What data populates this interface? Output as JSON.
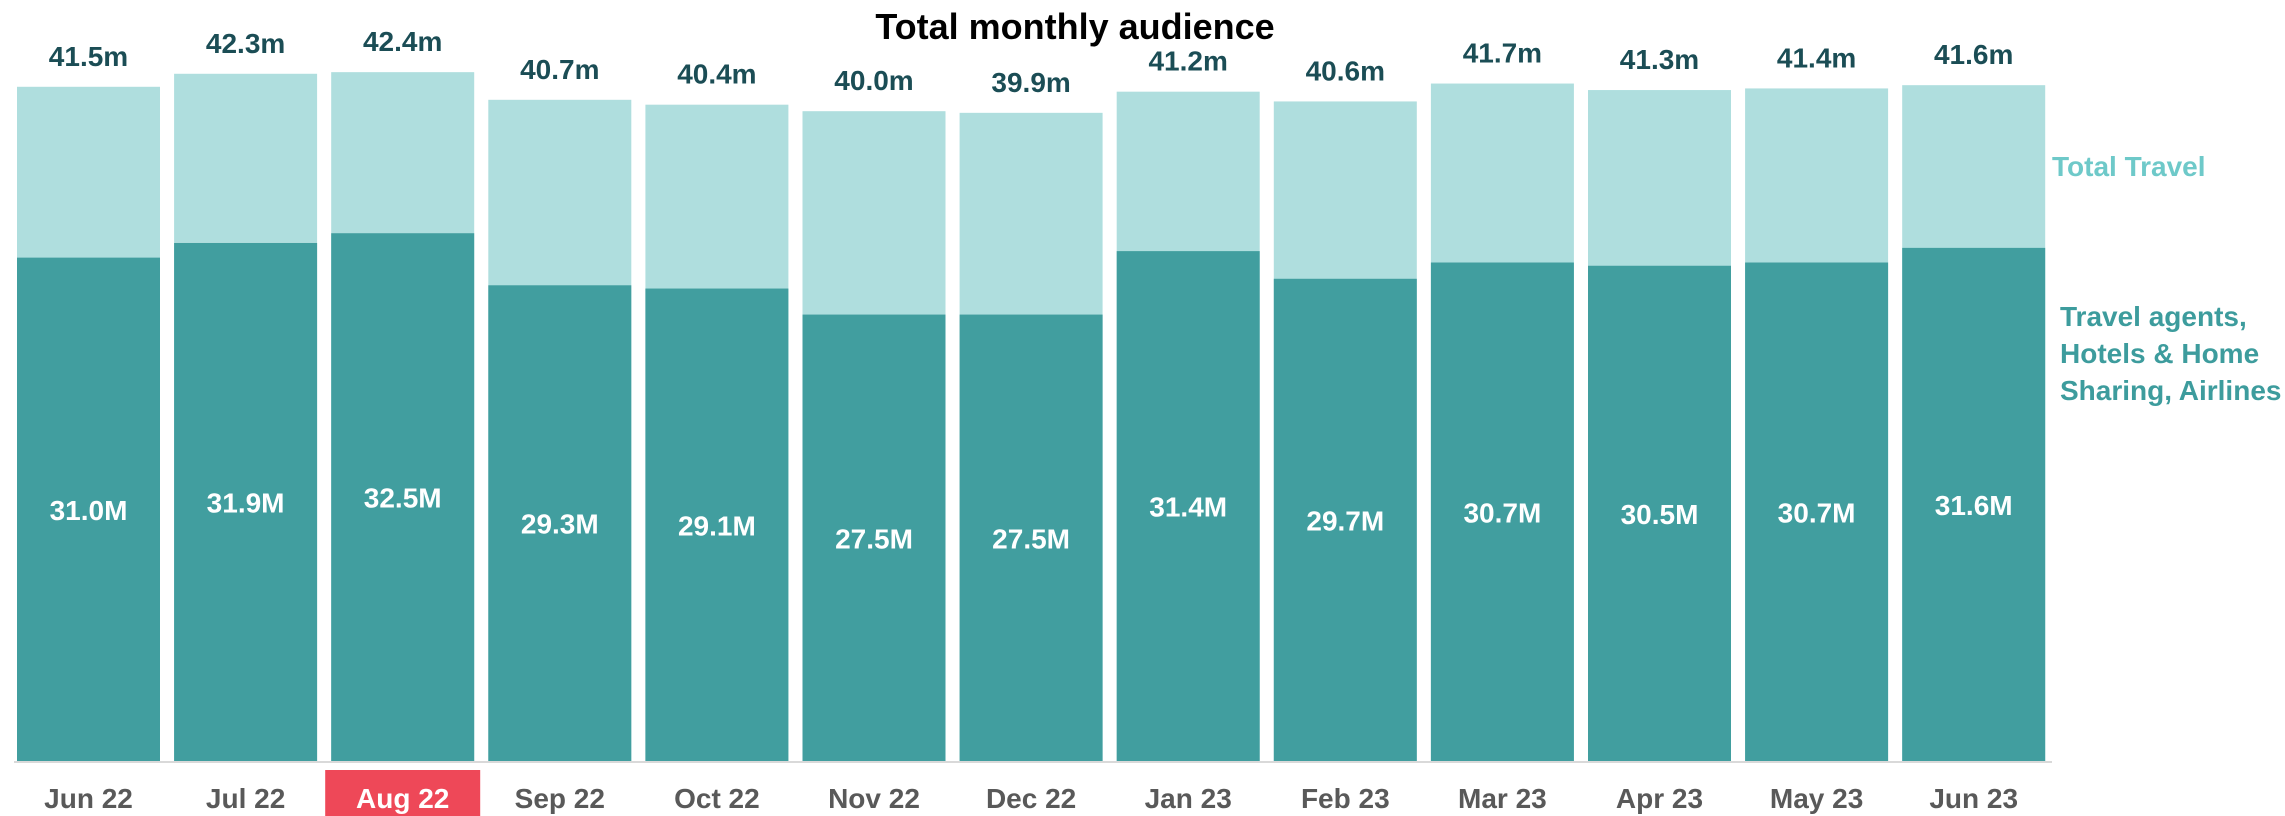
{
  "colors": {
    "total_travel": "#afdede",
    "segment": "#419e9f",
    "total_label": "#1b4d55",
    "inner_label": "#ffffff",
    "axis_label": "#595959",
    "highlight_bg": "#ee4858",
    "highlight_text": "#ffffff",
    "legend_total": "#6ec9c9",
    "legend_segment": "#3d9c9d",
    "axis_line": "#d9d9d9"
  },
  "chart_data": {
    "type": "bar",
    "stacking": "overlap",
    "title": "Total monthly audience",
    "categories": [
      "Jun 22",
      "Jul 22",
      "Aug 22",
      "Sep 22",
      "Oct 22",
      "Nov 22",
      "Dec 22",
      "Jan 23",
      "Feb 23",
      "Mar 23",
      "Apr 23",
      "May 23",
      "Jun 23"
    ],
    "highlighted_category": "Aug 22",
    "series": [
      {
        "name": "Total Travel",
        "values": [
          41.5,
          42.3,
          42.4,
          40.7,
          40.4,
          40.0,
          39.9,
          41.2,
          40.6,
          41.7,
          41.3,
          41.4,
          41.6
        ],
        "labels": [
          "41.5m",
          "42.3m",
          "42.4m",
          "40.7m",
          "40.4m",
          "40.0m",
          "39.9m",
          "41.2m",
          "40.6m",
          "41.7m",
          "41.3m",
          "41.4m",
          "41.6m"
        ]
      },
      {
        "name": "Travel agents, Hotels & Home Sharing, Airlines",
        "values": [
          31.0,
          31.9,
          32.5,
          29.3,
          29.1,
          27.5,
          27.5,
          31.4,
          29.7,
          30.7,
          30.5,
          30.7,
          31.6
        ],
        "labels": [
          "31.0M",
          "31.9M",
          "32.5M",
          "29.3M",
          "29.1M",
          "27.5M",
          "27.5M",
          "31.4M",
          "29.7M",
          "30.7M",
          "30.5M",
          "30.7M",
          "31.6M"
        ]
      }
    ],
    "legend": [
      {
        "lines": [
          "Total Travel"
        ]
      },
      {
        "lines": [
          "Travel agents,",
          "Hotels & Home",
          "Sharing, Airlines"
        ]
      }
    ],
    "legend_placement": "right",
    "xlabel": "",
    "ylabel": "",
    "grid": false,
    "y_axis_visible": false
  }
}
